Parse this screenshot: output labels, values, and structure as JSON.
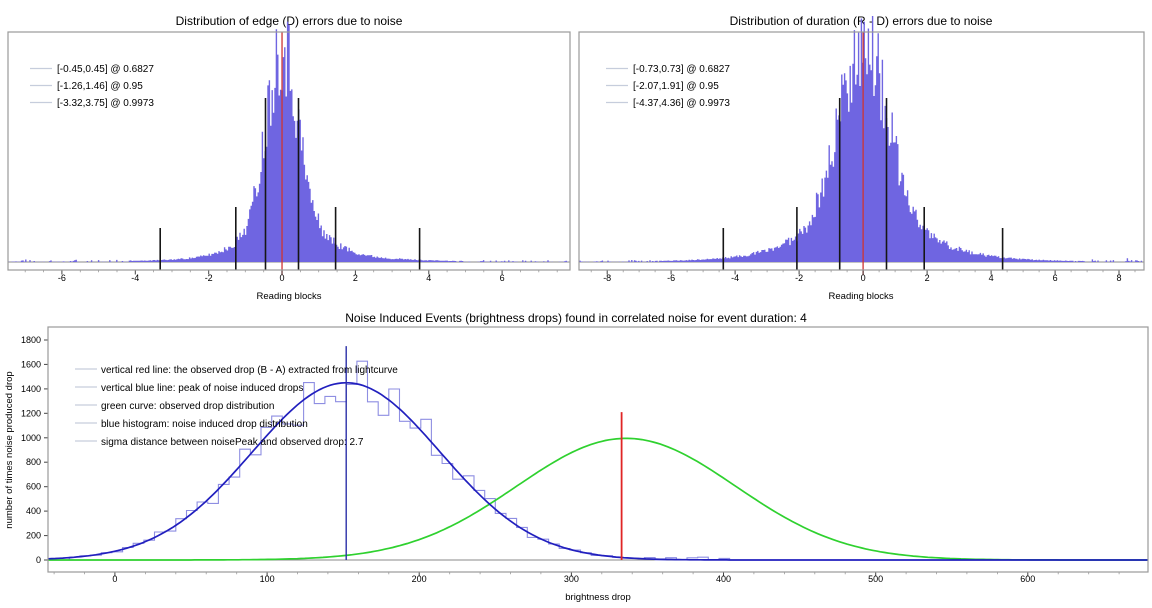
{
  "page": {
    "background": "#ffffff"
  },
  "colors": {
    "histogram_fill": "#6f65e1",
    "red_line": "#cf3433",
    "interval_line": "#161616",
    "frame": "#9a9a9a",
    "axis_line": "#8a8a8a",
    "tick_major": "#444444",
    "tick_minor": "#9a9a9a",
    "noise_step_blue": "#8e8ee2",
    "noise_curve_blue": "#211fbe",
    "noise_peak_vline_blue": "#2b2fa8",
    "observed_curve_green": "#2fd12f",
    "observed_vline_red": "#e02525",
    "legend_swatch": "#c6cddc"
  },
  "chart_data": [
    {
      "id": "edge",
      "type": "histogram",
      "title": "Distribution of edge (D) errors due to noise",
      "xlabel": "Reading blocks",
      "xlim": [
        -7.47,
        7.85
      ],
      "xticks": [
        -6,
        -4,
        -2,
        0,
        2,
        4,
        6
      ],
      "minor_tick_step": 0.5,
      "center_line_x": 0,
      "legend": [
        "[-0.45,0.45] @ 0.6827",
        "[-1.26,1.46] @ 0.95",
        "[-3.32,3.75] @ 0.9973"
      ],
      "confidence_intervals": [
        {
          "low": -0.45,
          "high": 0.45,
          "probability": 0.6827,
          "marker_height_frac": 0.713
        },
        {
          "low": -1.26,
          "high": 1.46,
          "probability": 0.95,
          "marker_height_frac": 0.239
        },
        {
          "low": -3.32,
          "high": 3.75,
          "probability": 0.9973,
          "marker_height_frac": 0.148
        }
      ],
      "hist_model": {
        "weights": [
          0.6,
          0.28,
          0.12
        ],
        "means": [
          0,
          0.1,
          0.3
        ],
        "sigmas": [
          0.42,
          0.95,
          2.3
        ],
        "peak_frac": 0.94,
        "seed": 11
      }
    },
    {
      "id": "duration",
      "type": "histogram",
      "title": "Distribution of duration (R - D) errors due to noise",
      "xlabel": "Reading blocks",
      "xlim": [
        -8.88,
        8.78
      ],
      "xticks": [
        -8,
        -6,
        -4,
        -2,
        0,
        2,
        4,
        6,
        8
      ],
      "minor_tick_step": 0.5,
      "center_line_x": 0,
      "legend": [
        "[-0.73,0.73] @ 0.6827",
        "[-2.07,1.91] @ 0.95",
        "[-4.37,4.36] @ 0.9973"
      ],
      "confidence_intervals": [
        {
          "low": -0.73,
          "high": 0.73,
          "probability": 0.6827,
          "marker_height_frac": 0.713
        },
        {
          "low": -2.07,
          "high": 1.91,
          "probability": 0.95,
          "marker_height_frac": 0.239
        },
        {
          "low": -4.37,
          "high": 4.36,
          "probability": 0.9973,
          "marker_height_frac": 0.148
        }
      ],
      "hist_model": {
        "weights": [
          0.58,
          0.3,
          0.12
        ],
        "means": [
          0,
          0.05,
          0.1
        ],
        "sigmas": [
          0.73,
          1.6,
          3.2
        ],
        "peak_frac": 0.957,
        "seed": 23
      }
    },
    {
      "id": "events",
      "type": "histogram+line",
      "title": "Noise Induced Events (brightness drops) found in correlated noise for event duration: 4",
      "xlabel": "brightness drop",
      "ylabel": "number of times noise produced drop",
      "xlim": [
        -44,
        679
      ],
      "ylim": [
        0,
        1906
      ],
      "xticks": [
        0,
        100,
        200,
        300,
        400,
        500,
        600
      ],
      "x_minor_tick_step": 20,
      "yticks": [
        0,
        200,
        400,
        600,
        800,
        1000,
        1200,
        1400,
        1600,
        1800
      ],
      "legend": [
        "vertical red line: the observed drop (B - A) extracted from lightcurve",
        "vertical blue line: peak of noise induced drops",
        "green curve: observed drop distribution",
        "blue histogram: noise induced drop distribution",
        "sigma distance between noisePeak and observed drop: 2.7"
      ],
      "series": {
        "noise_histogram": {
          "center": 152,
          "sigma": 62,
          "peak": 1450,
          "bin_width": 7,
          "range": [
            -30,
            420
          ],
          "seed": 5
        },
        "noise_fit_curve": {
          "center": 152,
          "sigma": 62,
          "peak": 1450
        },
        "observed_curve": {
          "center": 336,
          "sigma": 72,
          "peak": 995
        },
        "noise_peak_vline": {
          "x": 152,
          "top": 1750
        },
        "observed_drop_vline": {
          "x": 333,
          "top": 1210
        }
      },
      "sigma_distance": 2.7
    }
  ]
}
